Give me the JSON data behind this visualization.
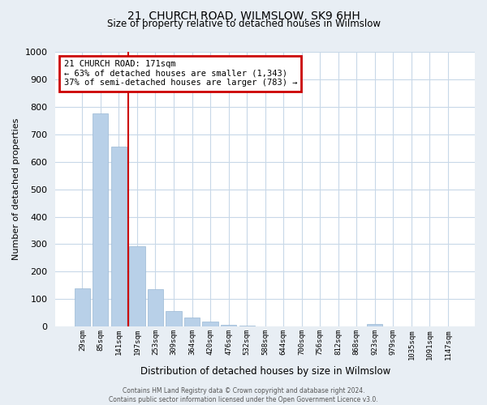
{
  "title": "21, CHURCH ROAD, WILMSLOW, SK9 6HH",
  "subtitle": "Size of property relative to detached houses in Wilmslow",
  "xlabel": "Distribution of detached houses by size in Wilmslow",
  "ylabel": "Number of detached properties",
  "bar_labels": [
    "29sqm",
    "85sqm",
    "141sqm",
    "197sqm",
    "253sqm",
    "309sqm",
    "364sqm",
    "420sqm",
    "476sqm",
    "532sqm",
    "588sqm",
    "644sqm",
    "700sqm",
    "756sqm",
    "812sqm",
    "868sqm",
    "923sqm",
    "979sqm",
    "1035sqm",
    "1091sqm",
    "1147sqm"
  ],
  "bar_values": [
    140,
    775,
    655,
    293,
    135,
    57,
    33,
    18,
    7,
    5,
    0,
    0,
    0,
    0,
    0,
    0,
    9,
    0,
    0,
    0,
    0
  ],
  "bar_color": "#b8d0e8",
  "bar_edge_color": "#9ab8d4",
  "vline_color": "#cc0000",
  "annotation_title": "21 CHURCH ROAD: 171sqm",
  "annotation_line1": "← 63% of detached houses are smaller (1,343)",
  "annotation_line2": "37% of semi-detached houses are larger (783) →",
  "annotation_box_edgecolor": "#cc0000",
  "ylim": [
    0,
    1000
  ],
  "yticks": [
    0,
    100,
    200,
    300,
    400,
    500,
    600,
    700,
    800,
    900,
    1000
  ],
  "background_color": "#e8eef4",
  "plot_background_color": "#ffffff",
  "grid_color": "#c8d8e8",
  "footer_line1": "Contains HM Land Registry data © Crown copyright and database right 2024.",
  "footer_line2": "Contains public sector information licensed under the Open Government Licence v3.0."
}
